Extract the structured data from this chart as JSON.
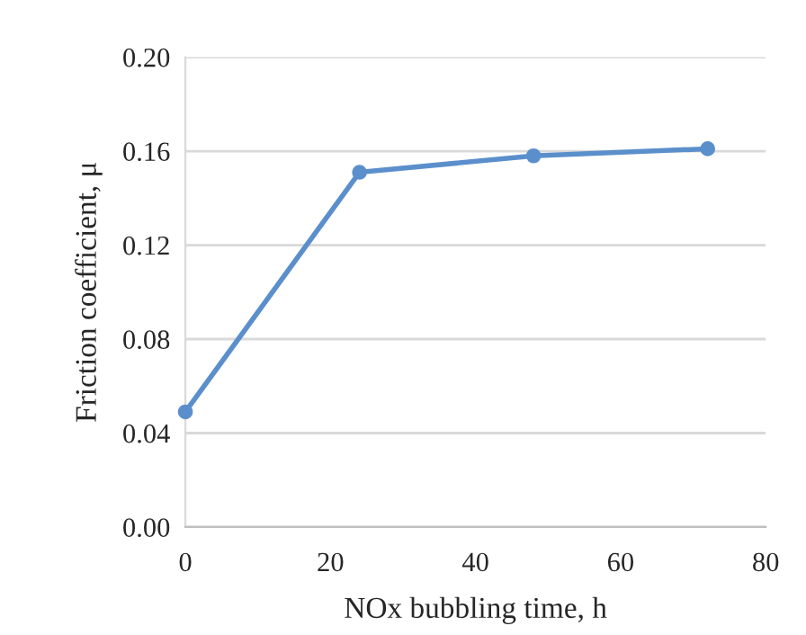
{
  "chart_data": {
    "type": "line",
    "xlabel": "NOx bubbling time, h",
    "ylabel": "Friction coefficient, μ",
    "x": [
      0,
      24,
      48,
      72
    ],
    "series": [
      {
        "color": "#5b8fcc",
        "values": [
          0.049,
          0.151,
          0.158,
          0.161
        ]
      }
    ],
    "xlim": [
      0,
      80
    ],
    "xticks": [
      0,
      20,
      40,
      60,
      80
    ],
    "ylim": [
      0,
      0.2
    ],
    "yticks": [
      {
        "value": 0,
        "label": "0.00"
      },
      {
        "value": 0.04,
        "label": "0.04"
      },
      {
        "value": 0.08,
        "label": "0.08"
      },
      {
        "value": 0.12,
        "label": "0.12"
      },
      {
        "value": 0.16,
        "label": "0.16"
      },
      {
        "value": 0.2,
        "label": "0.20"
      }
    ],
    "grid": "y",
    "marker": "circle",
    "line_style": "solid"
  }
}
